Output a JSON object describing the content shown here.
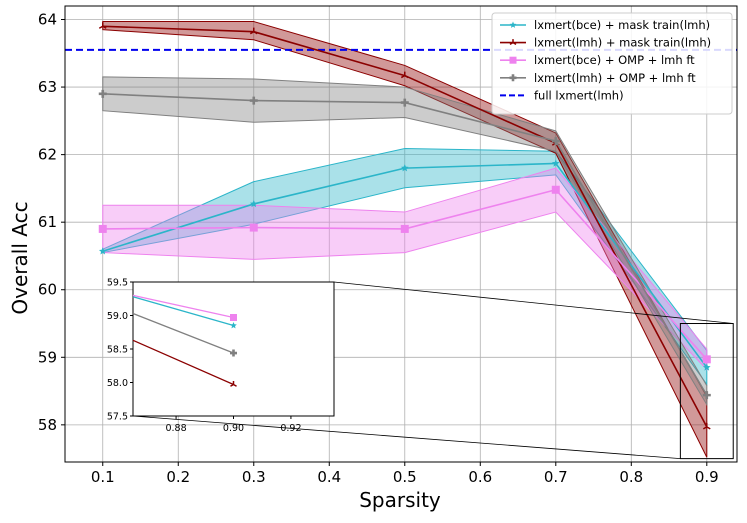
{
  "chart_data": {
    "type": "line",
    "title": "",
    "xlabel": "Sparsity",
    "ylabel": "Overall Acc",
    "xlim": [
      0.05,
      0.94
    ],
    "ylim": [
      57.45,
      64.2
    ],
    "x_ticks": [
      0.1,
      0.2,
      0.3,
      0.4,
      0.5,
      0.6,
      0.7,
      0.8,
      0.9
    ],
    "x_tick_labels": [
      "0.1",
      "0.2",
      "0.3",
      "0.4",
      "0.5",
      "0.6",
      "0.7",
      "0.8",
      "0.9"
    ],
    "y_ticks": [
      58,
      59,
      60,
      61,
      62,
      63,
      64
    ],
    "y_tick_labels": [
      "58",
      "59",
      "60",
      "61",
      "62",
      "63",
      "64"
    ],
    "grid": true,
    "legend_position": "top-right",
    "x": [
      0.1,
      0.3,
      0.5,
      0.7,
      0.9
    ],
    "series": [
      {
        "name": "lxmert(bce) + mask train(lmh)",
        "color": "#2bb5c9",
        "marker": "star",
        "values": [
          60.57,
          61.27,
          61.8,
          61.87,
          58.85
        ],
        "lower": [
          60.55,
          60.97,
          61.51,
          61.7,
          58.6
        ],
        "upper": [
          60.6,
          61.6,
          62.09,
          62.05,
          59.1
        ]
      },
      {
        "name": "lxmert(lmh) + mask train(lmh)",
        "color": "#8b0000",
        "marker": "tri",
        "values": [
          63.9,
          63.82,
          63.17,
          62.17,
          57.97
        ],
        "lower": [
          63.85,
          63.7,
          63.02,
          62.02,
          57.52
        ],
        "upper": [
          63.97,
          63.97,
          63.32,
          62.32,
          58.42
        ]
      },
      {
        "name": "lxmert(bce) + OMP + lmh ft",
        "color": "#ee82ee",
        "marker": "square",
        "values": [
          60.9,
          60.92,
          60.9,
          61.48,
          58.97
        ],
        "lower": [
          60.55,
          60.45,
          60.55,
          61.15,
          58.82
        ],
        "upper": [
          61.25,
          61.25,
          61.15,
          61.8,
          59.12
        ]
      },
      {
        "name": "lxmert(lmh) + OMP + lmh ft",
        "color": "#808080",
        "marker": "plus",
        "values": [
          62.9,
          62.8,
          62.77,
          62.2,
          58.44
        ],
        "lower": [
          62.65,
          62.48,
          62.55,
          62.05,
          58.3
        ],
        "upper": [
          63.15,
          63.12,
          63.0,
          62.35,
          58.58
        ]
      }
    ],
    "reference_lines": [
      {
        "name": "full lxmert(lmh)",
        "color": "#0000ee",
        "style": "dashed",
        "y": 63.55
      }
    ],
    "inset": {
      "xlim": [
        0.865,
        0.935
      ],
      "ylim": [
        57.5,
        59.5
      ],
      "x_ticks": [
        0.88,
        0.9,
        0.92
      ],
      "x_tick_labels": [
        "0.88",
        "0.90",
        "0.92"
      ],
      "y_ticks": [
        57.5,
        58.0,
        58.5,
        59.0,
        59.5
      ],
      "y_tick_labels": [
        "57.5",
        "58.0",
        "58.5",
        "59.0",
        "59.5"
      ],
      "x_start": 0.865,
      "start_values": [
        59.28,
        58.63,
        59.3,
        59.03
      ],
      "end_values": [
        58.85,
        57.97,
        58.97,
        58.44
      ]
    }
  }
}
